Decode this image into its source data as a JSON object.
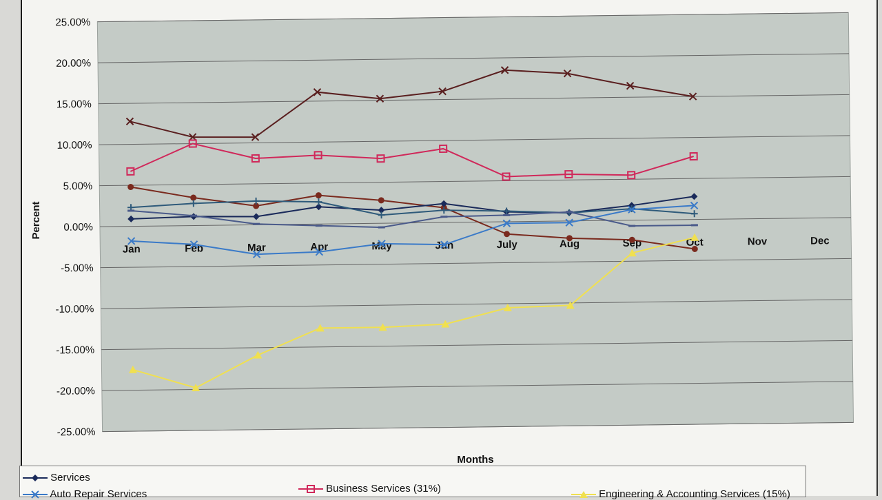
{
  "chart_data": {
    "type": "line",
    "xlabel": "Months",
    "ylabel": "Percent",
    "categories": [
      "Jan",
      "Feb",
      "Mar",
      "Apr",
      "May",
      "Jun",
      "July",
      "Aug",
      "Sep",
      "Oct",
      "Nov",
      "Dec"
    ],
    "ylim": [
      -25,
      25
    ],
    "yticks": [
      "25.00%",
      "20.00%",
      "15.00%",
      "10.00%",
      "5.00%",
      "0.00%",
      "-5.00%",
      "-10.00%",
      "-15.00%",
      "-20.00%",
      "-25.00%"
    ],
    "grid": true,
    "legend_position": "bottom",
    "series": [
      {
        "name": "",
        "color": "#5a1f1f",
        "marker": "x",
        "values": [
          12.8,
          10.8,
          10.7,
          16.1,
          15.2,
          16.0,
          18.5,
          18.0,
          16.4,
          15.0,
          null,
          null
        ]
      },
      {
        "name": "Business Services (31%)",
        "color": "#d0285a",
        "marker": "square",
        "values": [
          6.7,
          10.0,
          8.1,
          8.4,
          7.9,
          9.0,
          5.5,
          5.7,
          5.5,
          7.7,
          null,
          null
        ]
      },
      {
        "name": "",
        "color": "#7a2a1e",
        "marker": "circle",
        "values": [
          4.8,
          3.4,
          2.3,
          3.5,
          2.8,
          1.8,
          -1.5,
          -2.1,
          -2.4,
          -3.6,
          null,
          null
        ]
      },
      {
        "name": "Services",
        "color": "#1a2a5a",
        "marker": "diamond",
        "values": [
          0.9,
          1.1,
          1.0,
          2.1,
          1.6,
          2.3,
          1.2,
          1.0,
          1.8,
          2.8,
          null,
          null
        ]
      },
      {
        "name": "",
        "color": "#2e5a7a",
        "marker": "plus",
        "values": [
          2.3,
          2.7,
          2.9,
          2.7,
          1.0,
          1.5,
          1.3,
          1.0,
          1.4,
          0.7,
          null,
          null
        ]
      },
      {
        "name": "",
        "color": "#4a5a8a",
        "marker": "dash",
        "values": [
          1.9,
          1.2,
          0.1,
          -0.2,
          -0.5,
          0.7,
          0.8,
          1.1,
          -0.7,
          -0.7,
          null,
          null
        ]
      },
      {
        "name": "Auto Repair Services",
        "color": "#3a7ac8",
        "marker": "x",
        "values": [
          -1.8,
          -2.3,
          -3.6,
          -3.4,
          -2.5,
          -2.7,
          -0.2,
          -0.2,
          1.3,
          1.7,
          null,
          null
        ]
      },
      {
        "name": "Engineering & Accounting Services (15%)",
        "color": "#f0e050",
        "marker": "triangle",
        "values": [
          -17.5,
          -19.8,
          -15.9,
          -12.7,
          -12.7,
          -12.4,
          -10.5,
          -10.3,
          -4.0,
          -2.2,
          null,
          null
        ]
      }
    ]
  },
  "legend": {
    "services": "Services",
    "business": "Business Services (31%)",
    "auto": "Auto Repair Services",
    "engineering": "Engineering & Accounting Services (15%)"
  }
}
